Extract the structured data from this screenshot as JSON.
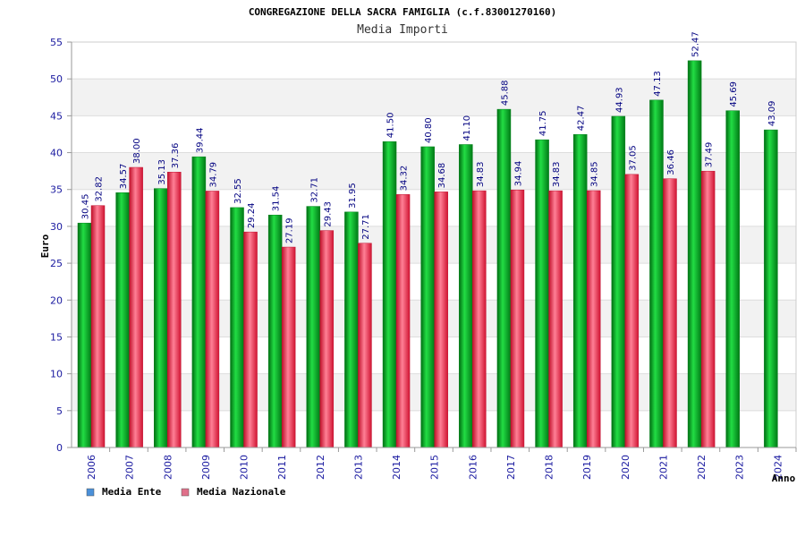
{
  "chart_data": {
    "type": "bar",
    "title": "CONGREGAZIONE DELLA SACRA FAMIGLIA (c.f.83001270160)",
    "subtitle": "Media Importi",
    "xlabel": "Anno",
    "ylabel": "Euro",
    "ylim": [
      0,
      55
    ],
    "yticks": [
      0,
      5,
      10,
      15,
      20,
      25,
      30,
      35,
      40,
      45,
      50,
      55
    ],
    "grid": true,
    "legend_position": "bottom-left",
    "categories": [
      "2006",
      "2007",
      "2008",
      "2009",
      "2010",
      "2011",
      "2012",
      "2013",
      "2014",
      "2015",
      "2016",
      "2017",
      "2018",
      "2019",
      "2020",
      "2021",
      "2022",
      "2023",
      "2024"
    ],
    "series": [
      {
        "name": "Media Ente",
        "color": "#00aa22",
        "legend_color": "#4a90d9",
        "values": [
          30.45,
          34.57,
          35.13,
          39.44,
          32.55,
          31.54,
          32.71,
          31.95,
          41.5,
          40.8,
          41.1,
          45.88,
          41.75,
          42.47,
          44.93,
          47.13,
          52.47,
          45.69,
          43.09
        ],
        "labels": [
          "30.45",
          "34.57",
          "35.13",
          "39.44",
          "32.55",
          "31.54",
          "32.71",
          "31.95",
          "41.50",
          "40.80",
          "41.10",
          "45.88",
          "41.75",
          "42.47",
          "44.93",
          "47.13",
          "52.47",
          "45.69",
          "43.09"
        ]
      },
      {
        "name": "Media Nazionale",
        "color": "#e0203a",
        "legend_color": "#e0708a",
        "values": [
          32.82,
          38.0,
          37.36,
          34.79,
          29.24,
          27.19,
          29.43,
          27.71,
          34.32,
          34.68,
          34.83,
          34.94,
          34.83,
          34.85,
          37.05,
          36.46,
          37.49,
          null,
          null
        ],
        "labels": [
          "32.82",
          "38.00",
          "37.36",
          "34.79",
          "29.24",
          "27.19",
          "29.43",
          "27.71",
          "34.32",
          "34.68",
          "34.83",
          "34.94",
          "34.83",
          "34.85",
          "37.05",
          "36.46",
          "37.49",
          null,
          null
        ]
      }
    ]
  }
}
